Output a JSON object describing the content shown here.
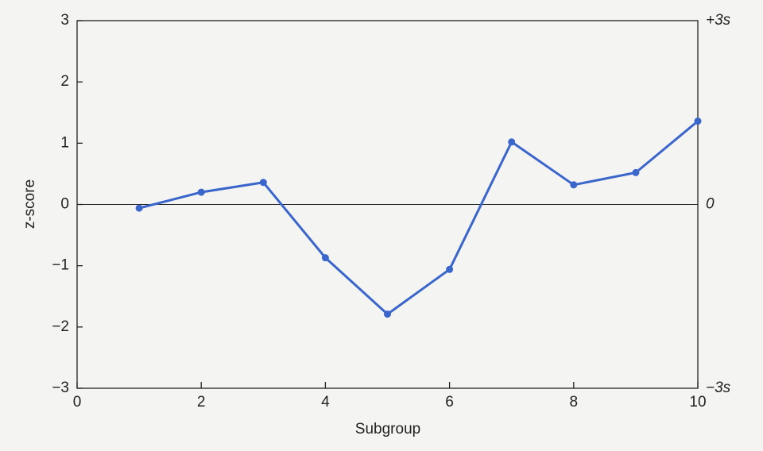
{
  "chart_data": {
    "type": "line",
    "x": [
      1,
      2,
      3,
      4,
      5,
      6,
      7,
      8,
      9,
      10
    ],
    "series": [
      {
        "color": "#3a66cc",
        "values": [
          -0.06,
          0.2,
          0.36,
          -0.87,
          -1.79,
          -1.06,
          1.02,
          0.32,
          0.52,
          1.36
        ]
      }
    ],
    "xlabel": "Subgroup",
    "ylabel": "z-score",
    "xlim": [
      0,
      10
    ],
    "xticks": [
      0,
      2,
      4,
      6,
      8,
      10
    ],
    "ylim": [
      -3,
      3
    ],
    "yticks": [
      {
        "value": -3,
        "label": "−3"
      },
      {
        "value": -2,
        "label": "−2"
      },
      {
        "value": -1,
        "label": "−1"
      },
      0,
      1,
      2,
      3
    ],
    "y2lim": [
      -3,
      3
    ],
    "y2ticks": [
      {
        "value": -3,
        "label": "−3s"
      },
      0,
      {
        "value": 3,
        "label": "+3s"
      }
    ]
  }
}
